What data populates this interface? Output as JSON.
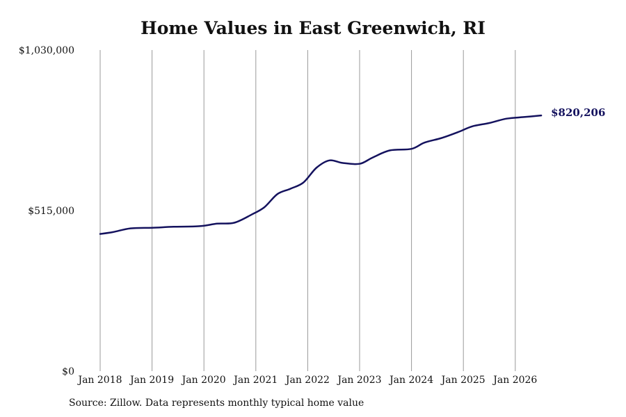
{
  "chart_data": {
    "type": "line",
    "title": "Home Values in East Greenwich, RI",
    "source": "Source: Zillow. Data represents monthly typical home value",
    "xlabel": "",
    "ylabel": "",
    "ylim": [
      0,
      1030000
    ],
    "y_ticks": [
      {
        "value": 0,
        "label": "$0"
      },
      {
        "value": 515000,
        "label": "$515,000"
      },
      {
        "value": 1030000,
        "label": "$1,030,000"
      }
    ],
    "x_ticks": [
      "Jan 2018",
      "Jan 2019",
      "Jan 2020",
      "Jan 2021",
      "Jan 2022",
      "Jan 2023",
      "Jan 2024",
      "Jan 2025",
      "Jan 2026"
    ],
    "x_range": [
      "2018-01",
      "2026-07"
    ],
    "vertical_gridlines": true,
    "line_color": "#14125e",
    "end_label": "$820,206",
    "series": [
      {
        "values": [
          {
            "date": "2018-01",
            "value": 440000
          },
          {
            "date": "2018-04",
            "value": 446000
          },
          {
            "date": "2018-08",
            "value": 458000
          },
          {
            "date": "2019-01",
            "value": 460000
          },
          {
            "date": "2019-06",
            "value": 463000
          },
          {
            "date": "2019-12",
            "value": 465000
          },
          {
            "date": "2020-04",
            "value": 473000
          },
          {
            "date": "2020-08",
            "value": 476000
          },
          {
            "date": "2020-12",
            "value": 502000
          },
          {
            "date": "2021-03",
            "value": 526000
          },
          {
            "date": "2021-06",
            "value": 568000
          },
          {
            "date": "2021-09",
            "value": 585000
          },
          {
            "date": "2021-12",
            "value": 605000
          },
          {
            "date": "2022-03",
            "value": 652000
          },
          {
            "date": "2022-06",
            "value": 676000
          },
          {
            "date": "2022-09",
            "value": 668000
          },
          {
            "date": "2023-01",
            "value": 665000
          },
          {
            "date": "2023-04",
            "value": 685000
          },
          {
            "date": "2023-08",
            "value": 708000
          },
          {
            "date": "2024-01",
            "value": 713000
          },
          {
            "date": "2024-04",
            "value": 733000
          },
          {
            "date": "2024-08",
            "value": 748000
          },
          {
            "date": "2024-12",
            "value": 768000
          },
          {
            "date": "2025-03",
            "value": 785000
          },
          {
            "date": "2025-07",
            "value": 796000
          },
          {
            "date": "2025-11",
            "value": 810000
          },
          {
            "date": "2026-03",
            "value": 815000
          },
          {
            "date": "2026-07",
            "value": 820206
          }
        ]
      }
    ]
  }
}
